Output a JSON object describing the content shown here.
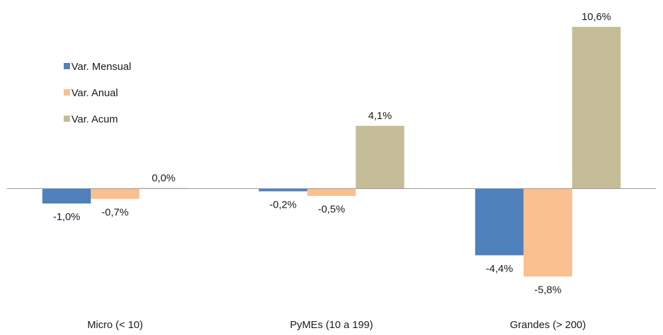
{
  "chart_data": {
    "type": "bar",
    "title": "",
    "xlabel": "",
    "ylabel": "",
    "categories": [
      "Micro (< 10)",
      "PyMEs (10 a 199)",
      "Grandes (> 200)"
    ],
    "series": [
      {
        "name": "Var. Mensual",
        "color": "#4f81bd",
        "values": [
          -1.0,
          -0.2,
          -4.4
        ],
        "labels": [
          "-1,0%",
          "-0,2%",
          "-4,4%"
        ]
      },
      {
        "name": "Var. Anual",
        "color": "#fac090",
        "values": [
          -0.7,
          -0.5,
          -5.8
        ],
        "labels": [
          "-0,7%",
          "-0,5%",
          "-5,8%"
        ]
      },
      {
        "name": "Var. Acum",
        "color": "#c4bd97",
        "values": [
          0.0,
          4.1,
          10.6
        ],
        "labels": [
          "0,0%",
          "4,1%",
          "10,6%"
        ]
      }
    ],
    "ylim": [
      -6.5,
      11.0
    ],
    "grid": false,
    "legend_position": "top-left"
  }
}
